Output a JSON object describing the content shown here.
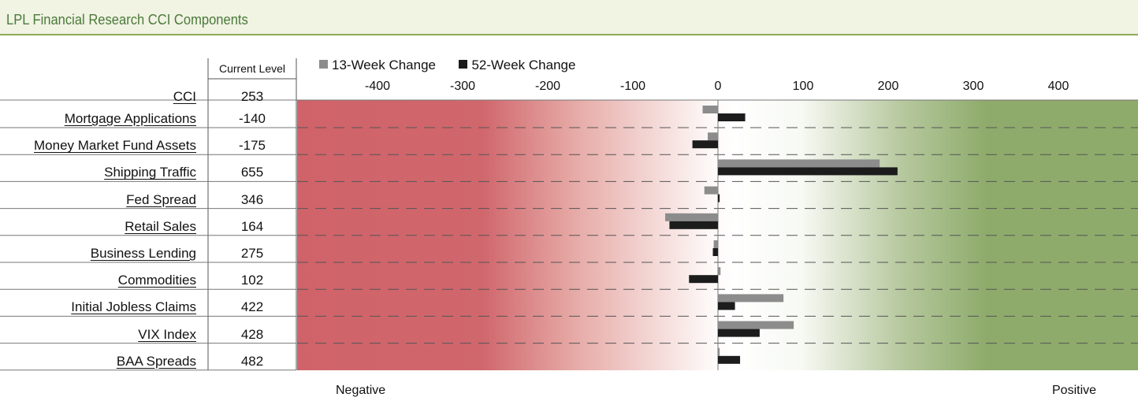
{
  "header": {
    "title": "LPL Financial Research CCI Components"
  },
  "legend": {
    "s13": "13-Week Change",
    "s52": "52-Week Change"
  },
  "table": {
    "current_header": "Current Level",
    "cci_label": "CCI",
    "cci_value": "253"
  },
  "footer": {
    "left": "Negative",
    "right": "Positive"
  },
  "colors": {
    "negative": "#d0636a",
    "positive": "#8daa6a",
    "s13": "#8c8c8c",
    "s52": "#1c1c1c"
  },
  "chart_data": {
    "type": "bar",
    "orientation": "horizontal",
    "categories": [
      "Mortgage Applications",
      "Money Market Fund Assets",
      "Shipping Traffic",
      "Fed Spread",
      "Retail Sales",
      "Business Lending",
      "Commodities",
      "Initial Jobless Claims",
      "VIX Index",
      "BAA Spreads"
    ],
    "current_level": [
      "-140",
      "-175",
      "655",
      "346",
      "164",
      "275",
      "102",
      "422",
      "428",
      "482"
    ],
    "series": [
      {
        "name": "13-Week Change",
        "values": [
          -18,
          -12,
          190,
          -16,
          -62,
          -5,
          3,
          77,
          89,
          2
        ]
      },
      {
        "name": "52-Week Change",
        "values": [
          32,
          -30,
          211,
          2,
          -57,
          -6,
          -34,
          20,
          49,
          26
        ]
      }
    ],
    "xlim": [
      -500,
      500
    ],
    "xticks": [
      "-400",
      "-300",
      "-200",
      "-100",
      "0",
      "100",
      "200",
      "300",
      "400"
    ],
    "grid": "dashed horizontal"
  }
}
